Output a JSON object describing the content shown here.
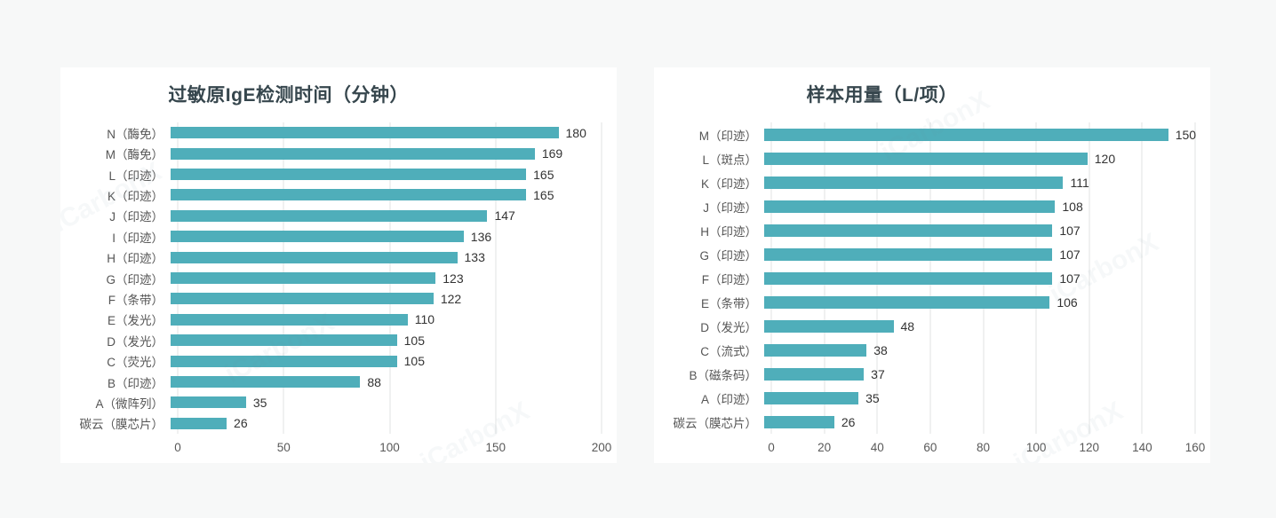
{
  "page": {
    "background": "#f7f8f8",
    "card_background": "#ffffff",
    "watermark": "iCarbonX"
  },
  "chart_data": [
    {
      "type": "bar",
      "orientation": "horizontal",
      "title": "过敏原IgE检测时间（分钟）",
      "categories": [
        "N（酶免）",
        "M（酶免）",
        "L（印迹）",
        "K（印迹）",
        "J（印迹）",
        "I（印迹）",
        "H（印迹）",
        "G（印迹）",
        "F（条带）",
        "E（发光）",
        "D（发光）",
        "C（荧光）",
        "B（印迹）",
        "A（微阵列）",
        "碳云（膜芯片）"
      ],
      "values": [
        180,
        169,
        165,
        165,
        147,
        136,
        133,
        123,
        122,
        110,
        105,
        105,
        88,
        35,
        26
      ],
      "xlim": [
        0,
        200
      ],
      "ticks": [
        0,
        50,
        100,
        150,
        200
      ],
      "bar_color": "#4FAEBA",
      "grid": true,
      "value_labels": true,
      "legend": "none"
    },
    {
      "type": "bar",
      "orientation": "horizontal",
      "title": "样本用量（L/项）",
      "categories": [
        "M（印迹）",
        "L（斑点）",
        "K（印迹）",
        "J（印迹）",
        "H（印迹）",
        "G（印迹）",
        "F（印迹）",
        "E（条带）",
        "D（发光）",
        "C（流式）",
        "B（磁条码）",
        "A（印迹）",
        "碳云（膜芯片）"
      ],
      "values": [
        150,
        120,
        111,
        108,
        107,
        107,
        107,
        106,
        48,
        38,
        37,
        35,
        26
      ],
      "xlim": [
        0,
        160
      ],
      "ticks": [
        0,
        20,
        40,
        60,
        80,
        100,
        120,
        140,
        160
      ],
      "bar_color": "#4FAEBA",
      "grid": true,
      "value_labels": true,
      "legend": "none"
    }
  ]
}
